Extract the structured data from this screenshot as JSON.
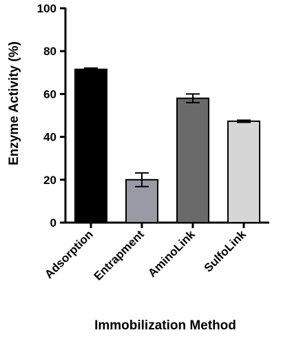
{
  "chart_data": {
    "type": "bar",
    "title": "",
    "xlabel": "Immobilization Method",
    "ylabel": "Enzyme Activity (%)",
    "ylim": [
      0,
      100
    ],
    "yticks": [
      0,
      20,
      40,
      60,
      80,
      100
    ],
    "grid": false,
    "categories": [
      "Adsorption",
      "Entrapment",
      "AminoLink",
      "SulfoLink"
    ],
    "values": [
      71.5,
      20.0,
      58.0,
      47.3
    ],
    "errors": [
      0.6,
      3.2,
      2.0,
      0.5
    ],
    "colors": [
      "#000000",
      "#9a9aa6",
      "#6a6a6a",
      "#d6d6d6"
    ],
    "error_bar_color": "#000000"
  }
}
